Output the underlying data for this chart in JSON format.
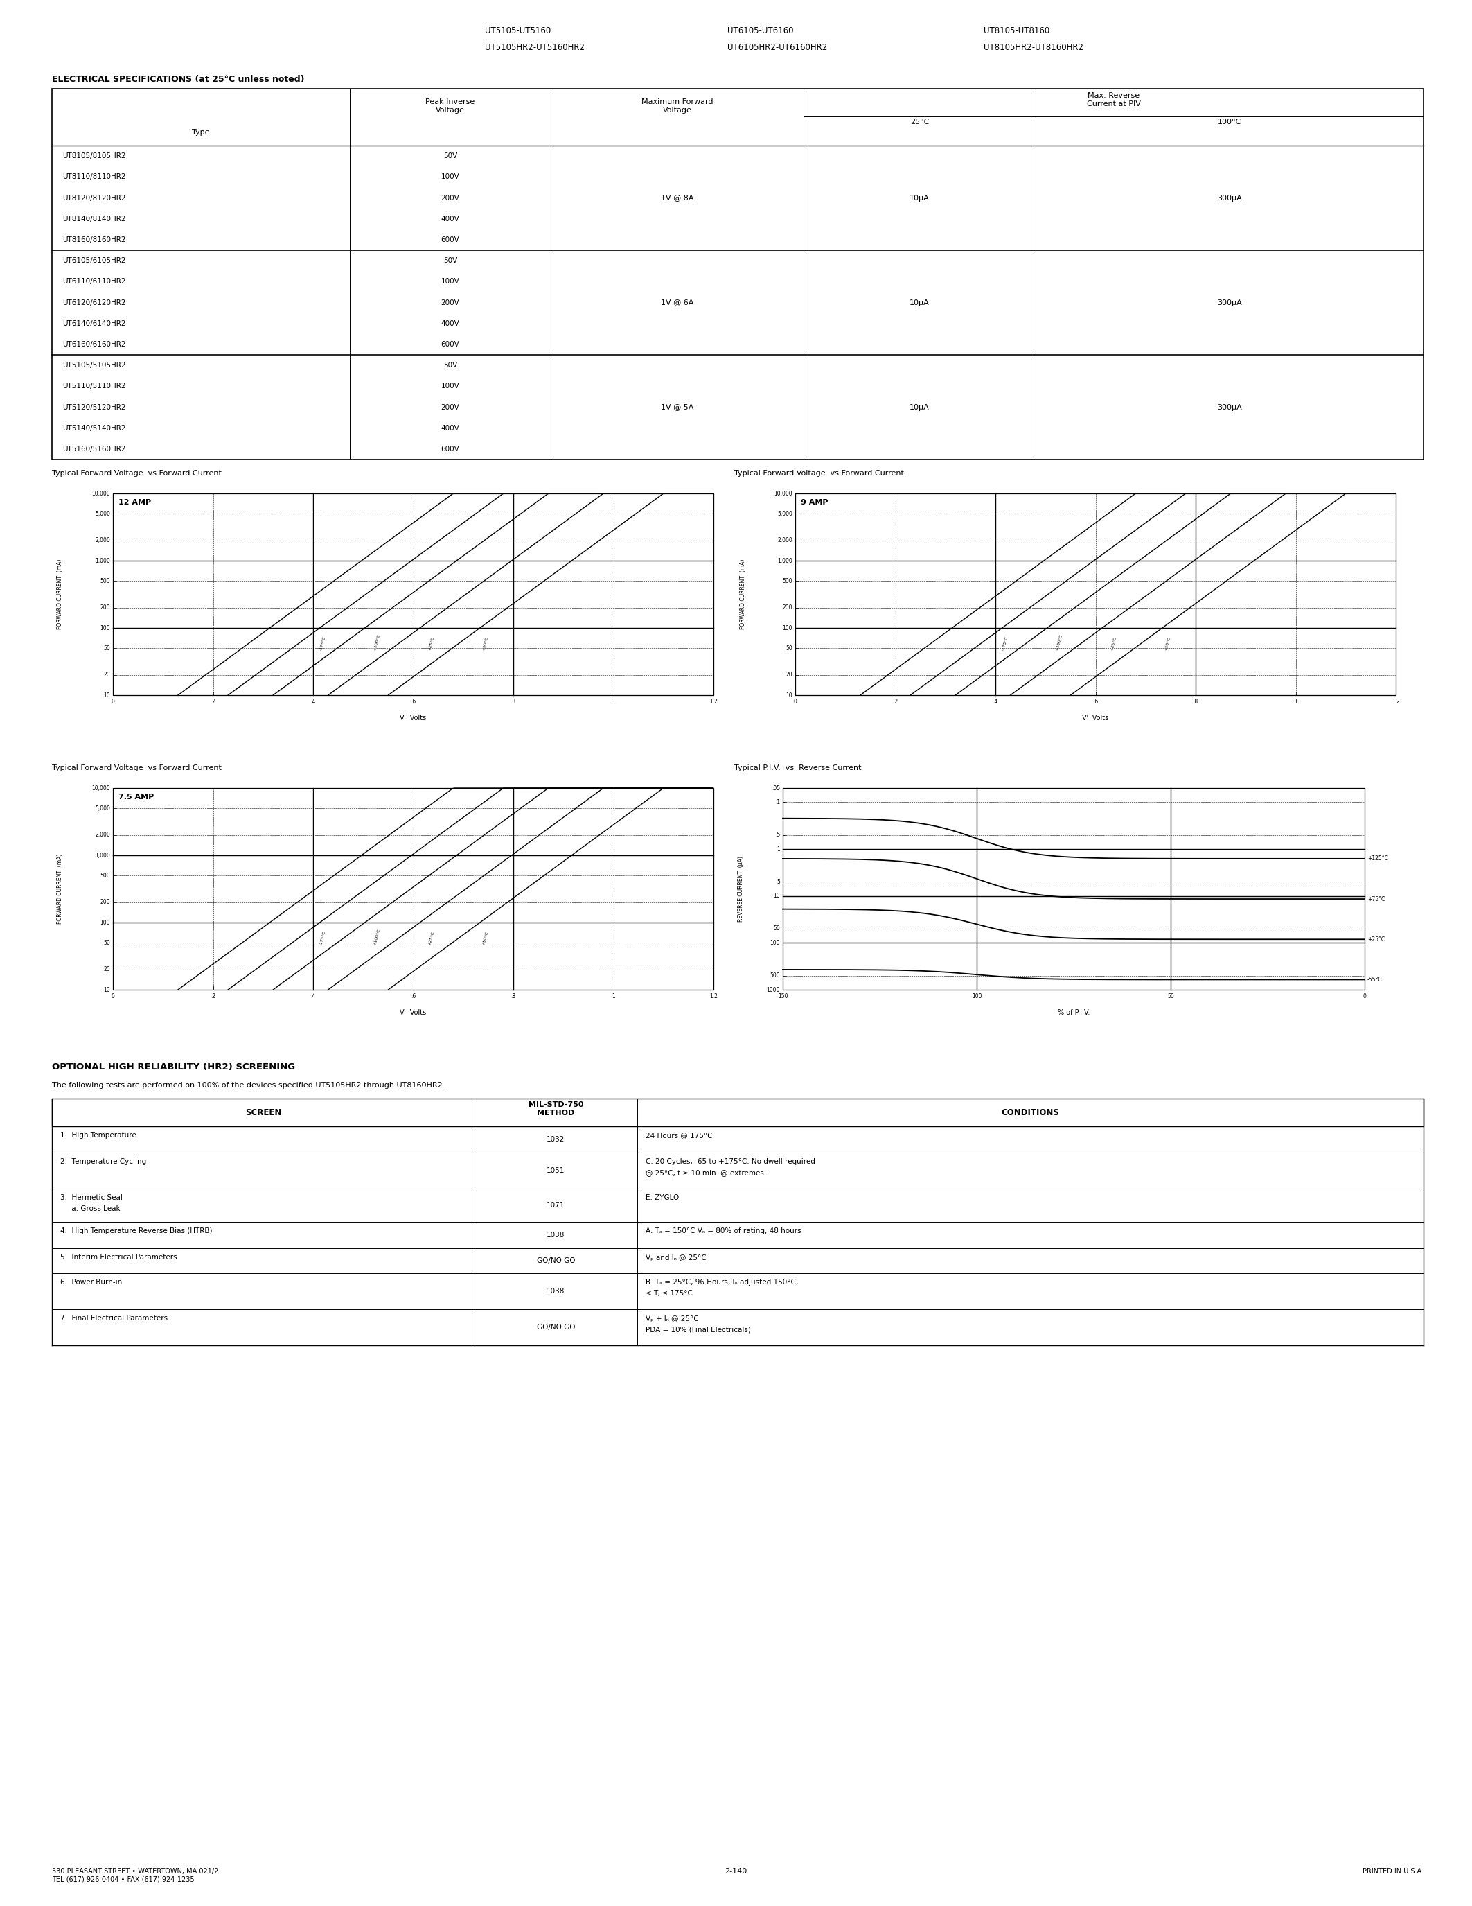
{
  "page_title_lines": [
    "UT5105-UT5160        UT6105-UT6160        UT8105-UT8160",
    "UT5105HR2-UT5160HR2  UT6105HR2-UT6160HR2  UT8105HR2-UT8160HR2"
  ],
  "elec_spec_title": "ELECTRICAL SPECIFICATIONS (at 25°C unless noted)",
  "table1_rows": [
    [
      "UT8105/8105HR2",
      "50V"
    ],
    [
      "UT8110/8110HR2",
      "100V"
    ],
    [
      "UT8120/8120HR2",
      "200V"
    ],
    [
      "UT8140/8140HR2",
      "400V"
    ],
    [
      "UT8160/8160HR2",
      "600V"
    ],
    [
      "UT6105/6105HR2",
      "50V"
    ],
    [
      "UT6110/6110HR2",
      "100V"
    ],
    [
      "UT6120/6120HR2",
      "200V"
    ],
    [
      "UT6140/6140HR2",
      "400V"
    ],
    [
      "UT6160/6160HR2",
      "600V"
    ],
    [
      "UT5105/5105HR2",
      "50V"
    ],
    [
      "UT5110/5110HR2",
      "100V"
    ],
    [
      "UT5120/5120HR2",
      "200V"
    ],
    [
      "UT5140/5140HR2",
      "400V"
    ],
    [
      "UT5160/5160HR2",
      "600V"
    ]
  ],
  "group_fwd": [
    "1V @ 8A",
    "1V @ 6A",
    "1V @ 5A"
  ],
  "group_rev25": [
    "10μA",
    "10μA",
    "10μA"
  ],
  "group_rev100": [
    "300μA",
    "300μA",
    "300μA"
  ],
  "chart1_title": "Typical Forward Voltage  vs Forward Current",
  "chart1_amp": "12 AMP",
  "chart2_title": "Typical Forward Voltage  vs Forward Current",
  "chart2_amp": "9 AMP",
  "chart3_title": "Typical Forward Voltage  vs Forward Current",
  "chart3_amp": "7.5 AMP",
  "chart4_title": "Typical P.I.V.  vs  Reverse Current",
  "chart_curve_labels": [
    "-175°C",
    "+100°C",
    "+25°C",
    "+50°C"
  ],
  "piv_temp_labels": [
    "-55°C",
    "+25°C",
    "+75°C",
    "+125°C"
  ],
  "optional_title": "OPTIONAL HIGH RELIABILITY (HR2) SCREENING",
  "optional_subtitle": "The following tests are performed on 100% of the devices specified UT5105HR2 through UT8160HR2.",
  "table2_rows": [
    [
      "1.  High Temperature",
      "1032",
      "24 Hours @ 175°C"
    ],
    [
      "2.  Temperature Cycling",
      "1051",
      "C. 20 Cycles, -65 to +175°C. No dwell required\n@ 25°C, t ≥ 10 min. @ extremes."
    ],
    [
      "3.  Hermetic Seal\n     a. Gross Leak",
      "1071",
      "E. ZYGLO"
    ],
    [
      "4.  High Temperature Reverse Bias (HTRB)",
      "1038",
      "A. Tₐ = 150°C Vₙ = 80% of rating, 48 hours"
    ],
    [
      "5.  Interim Electrical Parameters",
      "GO/NO GO",
      "Vₚ and Iₙ @ 25°C"
    ],
    [
      "6.  Power Burn-in",
      "1038",
      "B. Tₐ = 25°C, 96 Hours, Iₒ adjusted 150°C,\n< Tⱼ ≤ 175°C"
    ],
    [
      "7.  Final Electrical Parameters",
      "GO/NO GO",
      "Vₚ + Iₙ @ 25°C\nPDA = 10% (Final Electricals)"
    ]
  ],
  "footer_left": "530 PLEASANT STREET • WATERTOWN, MA 021/2\nTEL (617) 926-0404 • FAX (617) 924-1235",
  "footer_center": "2-140",
  "footer_right": "PRINTED IN U.S.A."
}
